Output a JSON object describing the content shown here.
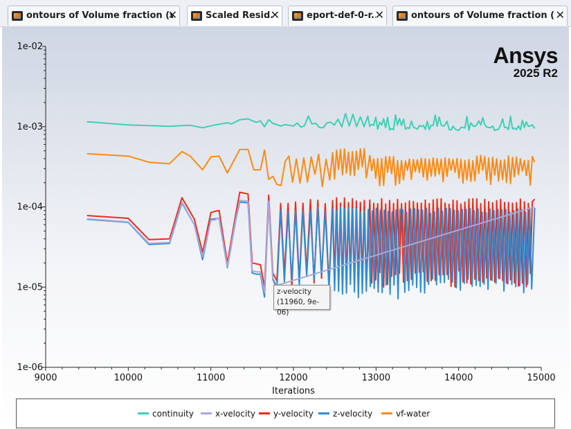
{
  "tabs": [
    {
      "label": "ontours of Volume fraction (wat",
      "active": false
    },
    {
      "label": "Scaled Resid...",
      "active": true
    },
    {
      "label": "eport-def-0-r...",
      "active": false
    },
    {
      "label": "ontours of Volume fraction (wat",
      "active": false
    }
  ],
  "close_glyph": "✕",
  "brand": {
    "name": "Ansys",
    "version": "2025 R2"
  },
  "tooltip": {
    "series": "z-velocity",
    "value": "(11960, 9e-06)"
  },
  "chart_data": {
    "type": "line",
    "xlabel": "Iterations",
    "ylabel": "",
    "xlim": [
      9000,
      15000
    ],
    "ylim": [
      1e-06,
      0.01
    ],
    "yscale": "log",
    "xticks": [
      9000,
      10000,
      11000,
      12000,
      13000,
      14000,
      15000
    ],
    "yticks": [
      "1e-02",
      "1e-03",
      "1e-04",
      "1e-05",
      "1e-06"
    ],
    "legend_position": "bottom",
    "grid": false,
    "series": [
      {
        "name": "continuity",
        "color": "#3fcfb4",
        "points": [
          [
            9500,
            0.00115
          ],
          [
            10000,
            0.00105
          ],
          [
            10500,
            0.00101
          ],
          [
            10750,
            0.00104
          ],
          [
            10900,
            0.00097
          ],
          [
            11050,
            0.00105
          ],
          [
            11200,
            0.00112
          ],
          [
            11250,
            0.00108
          ],
          [
            11350,
            0.00122
          ],
          [
            11450,
            0.00125
          ],
          [
            11550,
            0.00113
          ],
          [
            11600,
            0.00118
          ],
          [
            11650,
            0.001
          ],
          [
            11700,
            0.00122
          ],
          [
            11750,
            0.0011
          ],
          [
            11850,
            0.00102
          ],
          [
            11900,
            0.00106
          ],
          [
            12000,
            0.00102
          ]
        ],
        "dense": [
          {
            "x0": 12000,
            "x1": 12900,
            "lo": 0.00092,
            "hi": 0.00113
          },
          {
            "x0": 12900,
            "x1": 14900,
            "lo": 0.00088,
            "hi": 0.00106
          }
        ],
        "end": 0.00095
      },
      {
        "name": "x-velocity",
        "color": "#a6a8dc",
        "points": [
          [
            9500,
            7.1e-05
          ],
          [
            10000,
            6.5e-05
          ],
          [
            10250,
            3.5e-05
          ],
          [
            10500,
            3.6e-05
          ],
          [
            10650,
            0.000115
          ],
          [
            10800,
            6e-05
          ],
          [
            10900,
            2.4e-05
          ],
          [
            11000,
            6.8e-05
          ],
          [
            11050,
            6.9e-05
          ],
          [
            11100,
            7.3e-05
          ],
          [
            11200,
            1.8e-05
          ],
          [
            11300,
            7e-05
          ],
          [
            11350,
            0.00012
          ],
          [
            11450,
            0.000118
          ],
          [
            11500,
            1.6e-05
          ],
          [
            11550,
            1.55e-05
          ],
          [
            11600,
            1.55e-05
          ],
          [
            11650,
            8.5e-06
          ],
          [
            11700,
            0.000118
          ],
          [
            11750,
            1.3e-05
          ],
          [
            11800,
            1.05e-05
          ]
        ],
        "dense": [],
        "end": 0.0001
      },
      {
        "name": "y-velocity",
        "color": "#ee2a1a",
        "points": [
          [
            9500,
            7.8e-05
          ],
          [
            10000,
            7.2e-05
          ],
          [
            10250,
            3.9e-05
          ],
          [
            10500,
            4e-05
          ],
          [
            10650,
            0.00013
          ],
          [
            10800,
            7e-05
          ],
          [
            10900,
            2.7e-05
          ],
          [
            11000,
            8.5e-05
          ],
          [
            11050,
            8.8e-05
          ],
          [
            11100,
            9e-05
          ],
          [
            11200,
            2e-05
          ],
          [
            11300,
            8e-05
          ],
          [
            11350,
            0.000152
          ],
          [
            11450,
            0.000145
          ],
          [
            11500,
            2e-05
          ],
          [
            11550,
            1.95e-05
          ],
          [
            11600,
            1.9e-05
          ],
          [
            11650,
            1e-05
          ],
          [
            11700,
            0.00014
          ],
          [
            11750,
            1.5e-05
          ],
          [
            11800,
            1.2e-05
          ]
        ],
        "dense": [
          {
            "x0": 11800,
            "x1": 12450,
            "lo": 1e-05,
            "hi": 0.000125
          },
          {
            "x0": 12450,
            "x1": 12900,
            "lo": 1e-05,
            "hi": 0.00013
          },
          {
            "x0": 12900,
            "x1": 14900,
            "lo": 1e-05,
            "hi": 0.000127
          }
        ],
        "end": 0.000125
      },
      {
        "name": "z-velocity",
        "color": "#2f8bd4",
        "points": [
          [
            9500,
            7e-05
          ],
          [
            10000,
            6.4e-05
          ],
          [
            10250,
            3.4e-05
          ],
          [
            10500,
            3.5e-05
          ],
          [
            10650,
            0.000112
          ],
          [
            10800,
            6e-05
          ],
          [
            10900,
            2.2e-05
          ],
          [
            11000,
            7e-05
          ],
          [
            11050,
            7.1e-05
          ],
          [
            11100,
            7.2e-05
          ],
          [
            11200,
            1.75e-05
          ],
          [
            11300,
            6.8e-05
          ],
          [
            11350,
            0.000115
          ],
          [
            11450,
            0.000112
          ],
          [
            11500,
            1.5e-05
          ],
          [
            11550,
            1.45e-05
          ],
          [
            11600,
            1.45e-05
          ],
          [
            11650,
            7.5e-06
          ],
          [
            11700,
            0.000115
          ],
          [
            11750,
            1.25e-05
          ],
          [
            11800,
            9.5e-06
          ]
        ],
        "dense": [
          {
            "x0": 11800,
            "x1": 12450,
            "lo": 9e-06,
            "hi": 0.0001
          },
          {
            "x0": 12450,
            "x1": 13300,
            "lo": 6.8e-06,
            "hi": 0.0001
          },
          {
            "x0": 13300,
            "x1": 14900,
            "lo": 8e-06,
            "hi": 9.7e-05
          }
        ],
        "end": 9.7e-05
      },
      {
        "name": "vf-water",
        "color": "#ff8a10",
        "points": [
          [
            9500,
            0.00046
          ],
          [
            10000,
            0.00043
          ],
          [
            10250,
            0.00036
          ],
          [
            10500,
            0.000345
          ],
          [
            10650,
            0.00049
          ],
          [
            10750,
            0.00043
          ],
          [
            10900,
            0.00029
          ],
          [
            11000,
            0.00042
          ],
          [
            11100,
            0.00043
          ],
          [
            11200,
            0.000265
          ],
          [
            11350,
            0.00052
          ],
          [
            11450,
            0.00052
          ],
          [
            11520,
            0.00029
          ],
          [
            11600,
            0.00029
          ],
          [
            11650,
            0.00051
          ],
          [
            11700,
            0.00022
          ],
          [
            11750,
            0.00024
          ],
          [
            11800,
            0.00019
          ],
          [
            11850,
            0.000185
          ],
          [
            11900,
            0.00037
          ]
        ],
        "dense": [
          {
            "x0": 11900,
            "x1": 12450,
            "lo": 0.000175,
            "hi": 0.00046
          },
          {
            "x0": 12450,
            "x1": 12900,
            "lo": 0.0002,
            "hi": 0.00054
          },
          {
            "x0": 12900,
            "x1": 14900,
            "lo": 0.00018,
            "hi": 0.00044
          }
        ],
        "end": 0.00036
      }
    ]
  }
}
